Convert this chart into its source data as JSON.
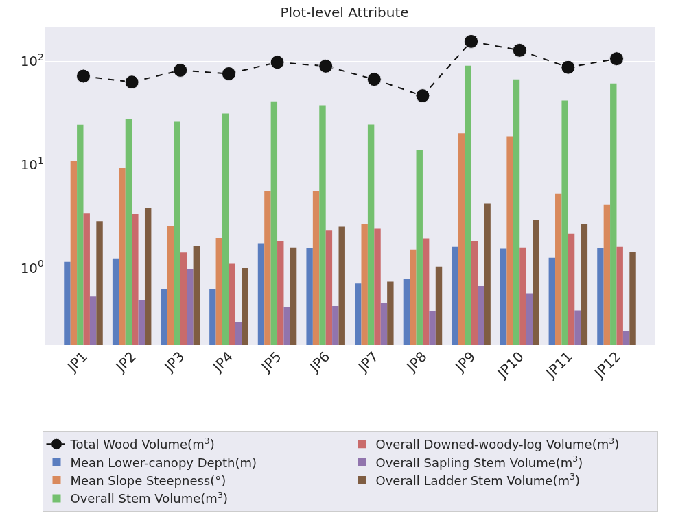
{
  "chart_data": {
    "type": "bar",
    "title": "Plot-level Attribute",
    "categories": [
      "JP1",
      "JP2",
      "JP3",
      "JP4",
      "JP5",
      "JP6",
      "JP7",
      "JP8",
      "JP9",
      "JP10",
      "JP11",
      "JP12"
    ],
    "log": true,
    "ylim": [
      0.18,
      213
    ],
    "yticks": [
      {
        "value": 1,
        "label": "10$^{0}$"
      },
      {
        "value": 10,
        "label": "10$^{1}$"
      },
      {
        "value": 100,
        "label": "10$^{2}$"
      }
    ],
    "grid": "y",
    "legend": "bottom",
    "series": [
      {
        "name": "Total Wood Volume(m$^{3}$)",
        "type": "line",
        "color": "#111111",
        "marker": "circle",
        "line_style": "dashed",
        "values": [
          72,
          63,
          82,
          76,
          98,
          90,
          67,
          46.5,
          156,
          128,
          87.5,
          106
        ]
      },
      {
        "name": "Mean Lower-canopy Depth(m)",
        "color": "#5a7dbf",
        "values": [
          1.15,
          1.24,
          0.63,
          0.63,
          1.74,
          1.57,
          0.71,
          0.78,
          1.61,
          1.54,
          1.26,
          1.55
        ]
      },
      {
        "name": "Mean Slope Steepness(°)",
        "color": "#d9895c",
        "values": [
          11.0,
          9.3,
          2.55,
          1.95,
          5.58,
          5.52,
          2.69,
          1.51,
          20.2,
          18.9,
          5.21,
          4.09
        ]
      },
      {
        "name": "Overall Stem Volume(m$^{3}$)",
        "color": "#74c06f",
        "values": [
          24.4,
          27.5,
          26,
          31.3,
          41,
          37.6,
          24.5,
          13.8,
          91,
          67,
          41.9,
          61
        ]
      },
      {
        "name": "Overall Downed-woody-log Volume(m$^{3}$)",
        "color": "#c96b6b",
        "values": [
          3.37,
          3.34,
          1.41,
          1.1,
          1.82,
          2.34,
          2.4,
          1.94,
          1.82,
          1.58,
          2.15,
          1.61
        ]
      },
      {
        "name": "Overall Sapling Stem Volume(m$^{3}$)",
        "color": "#9174ad",
        "values": [
          0.53,
          0.49,
          0.98,
          0.3,
          0.42,
          0.43,
          0.46,
          0.38,
          0.67,
          0.57,
          0.39,
          0.245
        ]
      },
      {
        "name": "Overall Ladder Stem Volume(m$^{3}$)",
        "color": "#7f5d42",
        "values": [
          2.85,
          3.83,
          1.65,
          1.0,
          1.58,
          2.51,
          0.74,
          1.03,
          4.23,
          2.95,
          2.67,
          1.42
        ]
      }
    ]
  }
}
